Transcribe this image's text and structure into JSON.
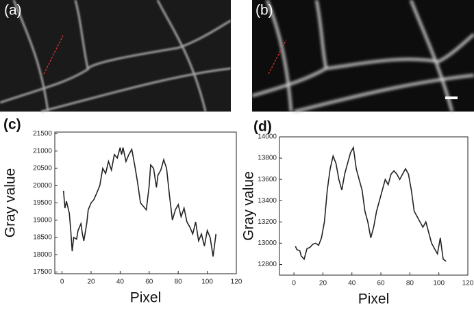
{
  "images": [
    {
      "label": "(a)"
    },
    {
      "label": "(b)"
    }
  ],
  "chart_data": [
    {
      "type": "line",
      "panel_label": "(c)",
      "xlabel": "Pixel",
      "ylabel": "Gray value",
      "x": [
        1,
        2,
        3,
        5,
        6,
        7,
        8,
        10,
        11,
        13,
        14,
        15,
        17,
        18,
        20,
        22,
        24,
        26,
        28,
        30,
        32,
        34,
        36,
        38,
        40,
        41,
        42,
        44,
        46,
        48,
        50,
        52,
        54,
        56,
        58,
        60,
        61,
        63,
        65,
        66,
        68,
        70,
        72,
        74,
        76,
        78,
        80,
        82,
        84,
        86,
        88,
        90,
        92,
        94,
        96,
        98,
        100,
        102,
        104,
        106
      ],
      "series": [
        {
          "color": "#222222",
          "values": [
            19850,
            19350,
            19550,
            19200,
            18700,
            18100,
            18500,
            18450,
            18700,
            18900,
            18600,
            18400,
            18900,
            19300,
            19500,
            19600,
            19800,
            20000,
            20500,
            20350,
            20700,
            20450,
            20900,
            20800,
            21100,
            20900,
            21100,
            20700,
            20900,
            21050,
            20600,
            20100,
            19500,
            19400,
            19300,
            20000,
            20600,
            20500,
            19950,
            20300,
            20450,
            20750,
            20500,
            19700,
            19000,
            19300,
            19450,
            19100,
            19350,
            18950,
            18800,
            18600,
            18950,
            18400,
            18600,
            18250,
            18700,
            18500,
            17950,
            18600
          ]
        }
      ],
      "xlim": [
        -5,
        120
      ],
      "xticks": [
        0,
        20,
        40,
        60,
        80,
        100,
        120
      ],
      "ylim": [
        17450,
        21550
      ],
      "yticks": [
        17500,
        18000,
        18500,
        19000,
        19500,
        20000,
        20500,
        21000,
        21500
      ]
    },
    {
      "type": "line",
      "panel_label": "(d)",
      "xlabel": "Pixel",
      "ylabel": "Gray value",
      "x": [
        1,
        2,
        4,
        5,
        7,
        9,
        11,
        13,
        15,
        17,
        19,
        21,
        23,
        25,
        27,
        29,
        31,
        33,
        35,
        37,
        39,
        41,
        43,
        45,
        47,
        49,
        51,
        53,
        55,
        57,
        59,
        61,
        63,
        65,
        67,
        69,
        71,
        73,
        75,
        77,
        79,
        81,
        83,
        85,
        87,
        89,
        91,
        93,
        95,
        97,
        99,
        101,
        103,
        105
      ],
      "series": [
        {
          "color": "#222222",
          "values": [
            12970,
            12940,
            12930,
            12880,
            12850,
            12950,
            12960,
            12990,
            13000,
            12980,
            13050,
            13200,
            13500,
            13700,
            13820,
            13750,
            13600,
            13500,
            13650,
            13750,
            13850,
            13900,
            13700,
            13600,
            13500,
            13300,
            13200,
            13050,
            13150,
            13300,
            13400,
            13500,
            13600,
            13550,
            13650,
            13680,
            13650,
            13600,
            13650,
            13700,
            13650,
            13500,
            13300,
            13250,
            13200,
            13150,
            13200,
            13100,
            13000,
            12950,
            12900,
            13050,
            12850,
            12830
          ]
        }
      ],
      "xlim": [
        -10,
        120
      ],
      "xticks": [
        0,
        20,
        40,
        60,
        80,
        100,
        120
      ],
      "ylim": [
        12700,
        14000
      ],
      "yticks": [
        12800,
        13000,
        13200,
        13400,
        13600,
        13800,
        14000
      ]
    }
  ]
}
